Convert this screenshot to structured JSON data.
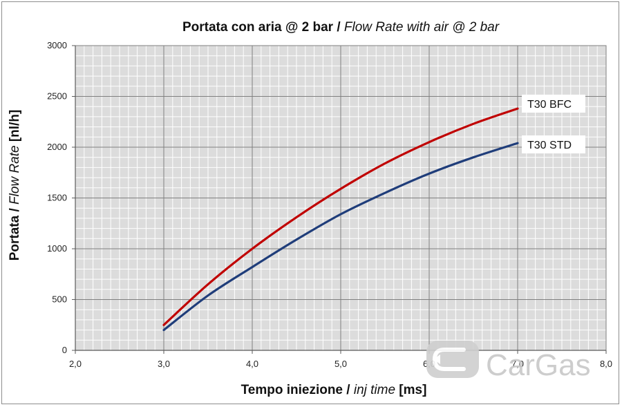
{
  "chart_data": {
    "type": "line",
    "title_bold": "Portata con aria @ 2 bar / ",
    "title_italic": "Flow Rate with air @ 2 bar",
    "xlabel_bold": "Tempo iniezione / ",
    "xlabel_italic": "inj time",
    "xlabel_unit": " [ms]",
    "ylabel_bold": "Portata / ",
    "ylabel_italic": "Flow Rate",
    "ylabel_unit": " [nl/h]",
    "xlim": [
      2.0,
      8.0
    ],
    "ylim": [
      0,
      3000
    ],
    "x_ticks": [
      "2,0",
      "3,0",
      "4,0",
      "5,0",
      "6,0",
      "7,0",
      "8,0"
    ],
    "y_ticks": [
      "0",
      "500",
      "1000",
      "1500",
      "2000",
      "2500",
      "3000"
    ],
    "grid": true,
    "series": [
      {
        "name": "T30 BFC",
        "color": "#c00000",
        "x": [
          3.0,
          3.5,
          4.0,
          4.5,
          5.0,
          5.5,
          6.0,
          6.5,
          7.0
        ],
        "y": [
          250,
          650,
          1000,
          1310,
          1590,
          1840,
          2050,
          2230,
          2380
        ]
      },
      {
        "name": "T30 STD",
        "color": "#1f3d7a",
        "x": [
          3.0,
          3.5,
          4.0,
          4.5,
          5.0,
          5.5,
          6.0,
          6.5,
          7.0
        ],
        "y": [
          200,
          540,
          820,
          1090,
          1340,
          1550,
          1740,
          1900,
          2040
        ]
      }
    ]
  },
  "watermark": {
    "text": "CarGas",
    "icon": "cargas-logo-icon"
  }
}
